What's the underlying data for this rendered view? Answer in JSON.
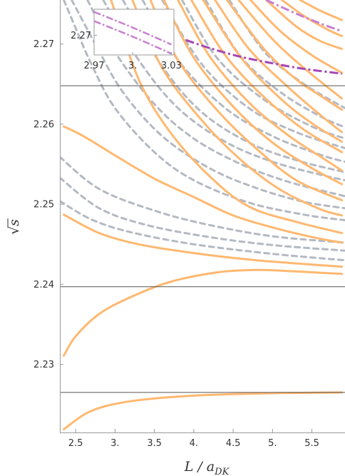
{
  "chart_data": {
    "type": "line",
    "xlabel": "L / a_DK",
    "ylabel": "√s",
    "xlim": [
      2.3,
      5.92
    ],
    "ylim": [
      2.2215,
      2.2755
    ],
    "x_ticks": [
      {
        "value": 2.5,
        "label": "2.5"
      },
      {
        "value": 3.0,
        "label": "3."
      },
      {
        "value": 3.5,
        "label": "3.5"
      },
      {
        "value": 4.0,
        "label": "4."
      },
      {
        "value": 4.5,
        "label": "4.5"
      },
      {
        "value": 5.0,
        "label": "5."
      },
      {
        "value": 5.5,
        "label": "5.5"
      }
    ],
    "y_ticks": [
      {
        "value": 2.23,
        "label": "2.23"
      },
      {
        "value": 2.24,
        "label": "2.24"
      },
      {
        "value": 2.25,
        "label": "2.25"
      },
      {
        "value": 2.26,
        "label": "2.26"
      },
      {
        "value": 2.27,
        "label": "2.27"
      }
    ],
    "thresholds": [
      2.2265,
      2.2397,
      2.2648
    ],
    "colors": {
      "orange": "#ffb870",
      "gray": "#b4b9c2",
      "purple": "#a546b4",
      "purple_light": "#c77fd0",
      "frame": "#999999"
    },
    "orange_curves": [
      [
        [
          2.35,
          2.2219
        ],
        [
          2.7,
          2.2242
        ],
        [
          3.2,
          2.2254
        ],
        [
          4.0,
          2.2261
        ],
        [
          5.0,
          2.2264
        ],
        [
          5.88,
          2.2265
        ]
      ],
      [
        [
          2.35,
          2.2311
        ],
        [
          2.5,
          2.2335
        ],
        [
          2.8,
          2.2363
        ],
        [
          3.2,
          2.2384
        ],
        [
          3.7,
          2.2403
        ],
        [
          4.3,
          2.2415
        ],
        [
          4.8,
          2.2418
        ],
        [
          5.3,
          2.2416
        ],
        [
          5.88,
          2.2413
        ]
      ],
      [
        [
          2.35,
          2.2487
        ],
        [
          2.8,
          2.2464
        ],
        [
          3.3,
          2.245
        ],
        [
          4.0,
          2.2439
        ],
        [
          4.8,
          2.243
        ],
        [
          5.88,
          2.2422
        ]
      ],
      [
        [
          2.35,
          2.2597
        ],
        [
          2.6,
          2.2585
        ],
        [
          3.0,
          2.2561
        ],
        [
          3.5,
          2.2532
        ],
        [
          4.0,
          2.2509
        ],
        [
          4.5,
          2.2486
        ],
        [
          5.0,
          2.2471
        ],
        [
          5.5,
          2.2459
        ],
        [
          5.88,
          2.2452
        ]
      ],
      [
        [
          2.95,
          2.2755
        ],
        [
          3.3,
          2.2656
        ],
        [
          3.7,
          2.259
        ],
        [
          4.2,
          2.2535
        ],
        [
          4.7,
          2.2497
        ],
        [
          5.3,
          2.2478
        ],
        [
          5.88,
          2.2464
        ]
      ],
      [
        [
          3.22,
          2.2755
        ],
        [
          3.6,
          2.267
        ],
        [
          4.1,
          2.2605
        ],
        [
          4.6,
          2.2555
        ],
        [
          5.1,
          2.2518
        ],
        [
          5.6,
          2.2494
        ],
        [
          5.88,
          2.2486
        ]
      ],
      [
        [
          3.45,
          2.2755
        ],
        [
          3.8,
          2.268
        ],
        [
          4.3,
          2.2617
        ],
        [
          4.8,
          2.2569
        ],
        [
          5.3,
          2.253
        ],
        [
          5.88,
          2.2505
        ]
      ],
      [
        [
          3.62,
          2.2755
        ],
        [
          4.0,
          2.2683
        ],
        [
          4.5,
          2.2622
        ],
        [
          5.0,
          2.2577
        ],
        [
          5.5,
          2.2545
        ],
        [
          5.88,
          2.2525
        ]
      ],
      [
        [
          3.8,
          2.2755
        ],
        [
          4.2,
          2.2685
        ],
        [
          4.7,
          2.2627
        ],
        [
          5.2,
          2.2586
        ],
        [
          5.6,
          2.256
        ],
        [
          5.88,
          2.2542
        ]
      ],
      [
        [
          3.97,
          2.2755
        ],
        [
          4.4,
          2.2686
        ],
        [
          4.9,
          2.2633
        ],
        [
          5.4,
          2.2593
        ],
        [
          5.88,
          2.2565
        ]
      ],
      [
        [
          4.12,
          2.2755
        ],
        [
          4.6,
          2.2683
        ],
        [
          5.1,
          2.2632
        ],
        [
          5.5,
          2.2601
        ],
        [
          5.88,
          2.2578
        ]
      ],
      [
        [
          4.27,
          2.2755
        ],
        [
          4.7,
          2.2694
        ],
        [
          5.2,
          2.2646
        ],
        [
          5.6,
          2.2612
        ],
        [
          5.88,
          2.259
        ]
      ],
      [
        [
          4.42,
          2.2755
        ],
        [
          4.9,
          2.2693
        ],
        [
          5.3,
          2.2656
        ],
        [
          5.6,
          2.2636
        ],
        [
          5.88,
          2.2618
        ]
      ],
      [
        [
          4.57,
          2.2755
        ],
        [
          5.0,
          2.2706
        ],
        [
          5.4,
          2.267
        ],
        [
          5.88,
          2.2632
        ]
      ],
      [
        [
          4.72,
          2.2755
        ],
        [
          5.1,
          2.2716
        ],
        [
          5.5,
          2.2686
        ],
        [
          5.88,
          2.2664
        ]
      ],
      [
        [
          4.92,
          2.2755
        ],
        [
          5.3,
          2.2722
        ],
        [
          5.6,
          2.2704
        ],
        [
          5.88,
          2.2694
        ]
      ],
      [
        [
          5.12,
          2.2755
        ],
        [
          5.4,
          2.2735
        ],
        [
          5.7,
          2.2718
        ],
        [
          5.88,
          2.271
        ]
      ],
      [
        [
          5.35,
          2.2755
        ],
        [
          5.6,
          2.2742
        ],
        [
          5.88,
          2.273
        ]
      ]
    ],
    "gray_curves": [
      [
        [
          2.3,
          2.2504
        ],
        [
          2.7,
          2.2481
        ],
        [
          3.2,
          2.2465
        ],
        [
          4.0,
          2.245
        ],
        [
          5.0,
          2.2438
        ],
        [
          5.92,
          2.243
        ]
      ],
      [
        [
          2.3,
          2.2533
        ],
        [
          2.8,
          2.2495
        ],
        [
          3.4,
          2.2474
        ],
        [
          4.2,
          2.2459
        ],
        [
          5.0,
          2.2449
        ],
        [
          5.92,
          2.2442
        ]
      ],
      [
        [
          2.3,
          2.2559
        ],
        [
          2.8,
          2.2519
        ],
        [
          3.5,
          2.2492
        ],
        [
          4.2,
          2.2474
        ],
        [
          5.0,
          2.246
        ],
        [
          5.92,
          2.2452
        ]
      ],
      [
        [
          2.35,
          2.2755
        ],
        [
          2.5,
          2.272
        ],
        [
          2.7,
          2.2675
        ],
        [
          3.0,
          2.262
        ],
        [
          3.5,
          2.2565
        ],
        [
          4.0,
          2.253
        ],
        [
          4.7,
          2.2502
        ],
        [
          5.4,
          2.2487
        ],
        [
          5.92,
          2.248
        ]
      ],
      [
        [
          2.45,
          2.2755
        ],
        [
          2.75,
          2.27
        ],
        [
          3.1,
          2.264
        ],
        [
          3.6,
          2.2585
        ],
        [
          4.2,
          2.2545
        ],
        [
          4.8,
          2.252
        ],
        [
          5.4,
          2.2503
        ],
        [
          5.92,
          2.2495
        ]
      ],
      [
        [
          2.65,
          2.2755
        ],
        [
          3.0,
          2.269
        ],
        [
          3.5,
          2.2625
        ],
        [
          4.0,
          2.2582
        ],
        [
          4.6,
          2.255
        ],
        [
          5.2,
          2.2528
        ],
        [
          5.92,
          2.251
        ]
      ],
      [
        [
          2.85,
          2.2755
        ],
        [
          3.3,
          2.268
        ],
        [
          3.8,
          2.262
        ],
        [
          4.4,
          2.2578
        ],
        [
          5.0,
          2.2553
        ],
        [
          5.6,
          2.2537
        ],
        [
          5.92,
          2.253
        ]
      ],
      [
        [
          3.1,
          2.2755
        ],
        [
          3.6,
          2.2672
        ],
        [
          4.1,
          2.2615
        ],
        [
          4.7,
          2.2577
        ],
        [
          5.3,
          2.2555
        ],
        [
          5.92,
          2.254
        ]
      ],
      [
        [
          3.35,
          2.2755
        ],
        [
          3.8,
          2.268
        ],
        [
          4.4,
          2.262
        ],
        [
          5.0,
          2.2585
        ],
        [
          5.6,
          2.2562
        ],
        [
          5.92,
          2.2553
        ]
      ],
      [
        [
          3.6,
          2.2755
        ],
        [
          4.1,
          2.2675
        ],
        [
          4.7,
          2.262
        ],
        [
          5.3,
          2.259
        ],
        [
          5.92,
          2.257
        ]
      ],
      [
        [
          3.85,
          2.2755
        ],
        [
          4.3,
          2.2682
        ],
        [
          4.9,
          2.263
        ],
        [
          5.5,
          2.2597
        ],
        [
          5.92,
          2.2582
        ]
      ],
      [
        [
          4.15,
          2.2755
        ],
        [
          4.6,
          2.2684
        ],
        [
          5.1,
          2.264
        ],
        [
          5.6,
          2.261
        ],
        [
          5.92,
          2.2596
        ]
      ],
      [
        [
          4.45,
          2.2755
        ],
        [
          4.9,
          2.269
        ],
        [
          5.4,
          2.265
        ],
        [
          5.92,
          2.262
        ]
      ]
    ],
    "purple_curves": [
      {
        "style": "light",
        "points": [
          [
            4.92,
            2.2755
          ],
          [
            5.3,
            2.2738
          ],
          [
            5.6,
            2.2726
          ],
          [
            5.88,
            2.2716
          ]
        ]
      },
      {
        "style": "dark",
        "points": [
          [
            3.9,
            2.2705
          ],
          [
            4.2,
            2.2695
          ],
          [
            4.6,
            2.2684
          ],
          [
            5.0,
            2.2676
          ],
          [
            5.4,
            2.2669
          ],
          [
            5.88,
            2.2663
          ]
        ]
      }
    ],
    "inset": {
      "xlim": [
        2.97,
        3.032
      ],
      "ylim": [
        2.2695,
        2.273
      ],
      "x_ticks": [
        {
          "value": 2.97,
          "label": "2.97"
        },
        {
          "value": 3.0,
          "label": "3."
        },
        {
          "value": 3.03,
          "label": "3.03"
        }
      ],
      "y_ticks": [
        {
          "value": 2.271,
          "label": "2.27"
        }
      ],
      "lines": [
        [
          [
            2.97,
            2.2728
          ],
          [
            3.0,
            2.2716
          ],
          [
            3.03,
            2.2703
          ]
        ],
        [
          [
            2.97,
            2.2721
          ],
          [
            3.0,
            2.2709
          ],
          [
            3.03,
            2.2696
          ]
        ]
      ]
    }
  }
}
